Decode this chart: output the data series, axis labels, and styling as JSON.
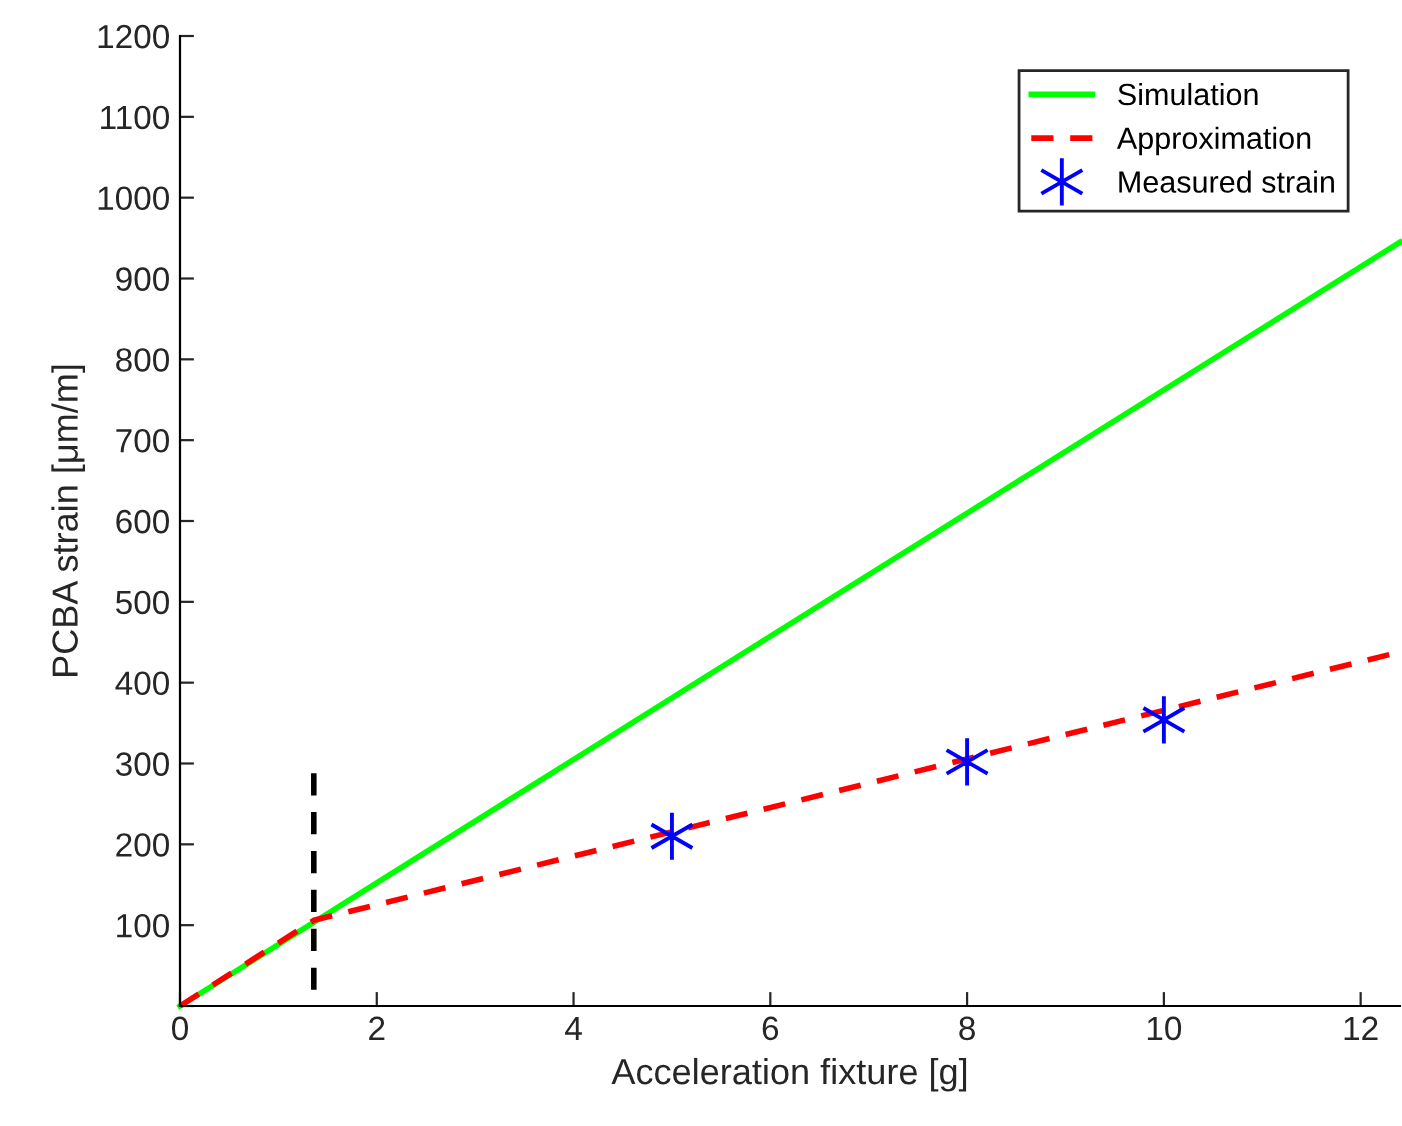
{
  "chart_data": {
    "type": "line",
    "xlabel": "Acceleration fixture [g]",
    "ylabel": "PCBA strain [μm/m]",
    "xlim": [
      0,
      12.4
    ],
    "ylim": [
      0,
      1200
    ],
    "xticks": [
      0,
      2,
      4,
      6,
      8,
      10,
      12
    ],
    "yticks": [
      {
        "value": 0,
        "label": null
      },
      100,
      200,
      300,
      400,
      500,
      600,
      700,
      800,
      900,
      1000,
      1100,
      1200
    ],
    "grid": false,
    "legend": "top right",
    "series": [
      {
        "name": "Simulation",
        "color": "#00ff00",
        "line_style": "solid",
        "x": [
          0,
          12.4
        ],
        "values": [
          0,
          945
        ]
      },
      {
        "name": "Approximation",
        "color": "#ff0000",
        "line_style": "dashed",
        "x": [
          0,
          1.36,
          12.4
        ],
        "values": [
          0,
          106,
          438
        ]
      },
      {
        "name": "Measured strain",
        "type": "scatter",
        "color": "#0000ff",
        "marker": "cross",
        "x": [
          5,
          8,
          10
        ],
        "values": [
          210,
          302,
          354
        ]
      },
      {
        "color": "#000000",
        "line_style": "dashed",
        "x": [
          1.36,
          1.36
        ],
        "values": [
          288,
          0
        ]
      }
    ]
  }
}
